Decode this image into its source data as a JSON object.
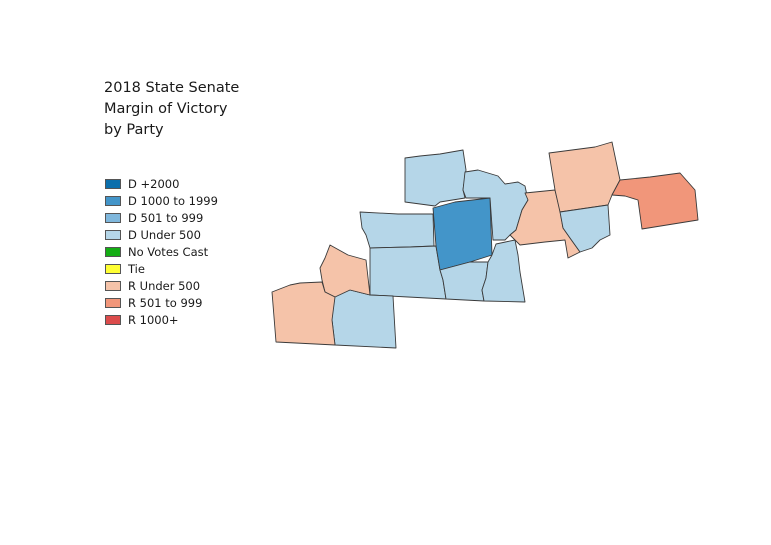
{
  "title": {
    "lines": [
      "2018 State Senate",
      "Margin of Victory",
      "by Party"
    ]
  },
  "legend": [
    {
      "label": "D +2000",
      "color": "#0b6fac"
    },
    {
      "label": "D 1000 to 1999",
      "color": "#4395c9"
    },
    {
      "label": "D 501 to 999",
      "color": "#7fb7dc"
    },
    {
      "label": "D Under 500",
      "color": "#b5d6e8"
    },
    {
      "label": "No Votes Cast",
      "color": "#14ad14"
    },
    {
      "label": "Tie",
      "color": "#ffff33"
    },
    {
      "label": "R Under 500",
      "color": "#f5c3a9"
    },
    {
      "label": "R 501 to 999",
      "color": "#f1967a"
    },
    {
      "label": "R 1000+",
      "color": "#dc4c4c"
    }
  ],
  "map": {
    "counties": [
      {
        "category": "D Under 500",
        "color": "#b5d6e8"
      },
      {
        "category": "D Under 500",
        "color": "#b5d6e8"
      },
      {
        "category": "D Under 500",
        "color": "#b5d6e8"
      },
      {
        "category": "D Under 500",
        "color": "#b5d6e8"
      },
      {
        "category": "D 1000 to 1999",
        "color": "#4395c9"
      },
      {
        "category": "D Under 500",
        "color": "#b5d6e8"
      },
      {
        "category": "D Under 500",
        "color": "#b5d6e8"
      },
      {
        "category": "D Under 500",
        "color": "#b5d6e8"
      },
      {
        "category": "R Under 500",
        "color": "#f5c3a9"
      },
      {
        "category": "R Under 500",
        "color": "#f5c3a9"
      },
      {
        "category": "R Under 500",
        "color": "#f5c3a9"
      },
      {
        "category": "R Under 500",
        "color": "#f5c3a9"
      },
      {
        "category": "D Under 500",
        "color": "#b5d6e8"
      },
      {
        "category": "R 501 to 999",
        "color": "#f1967a"
      }
    ]
  }
}
